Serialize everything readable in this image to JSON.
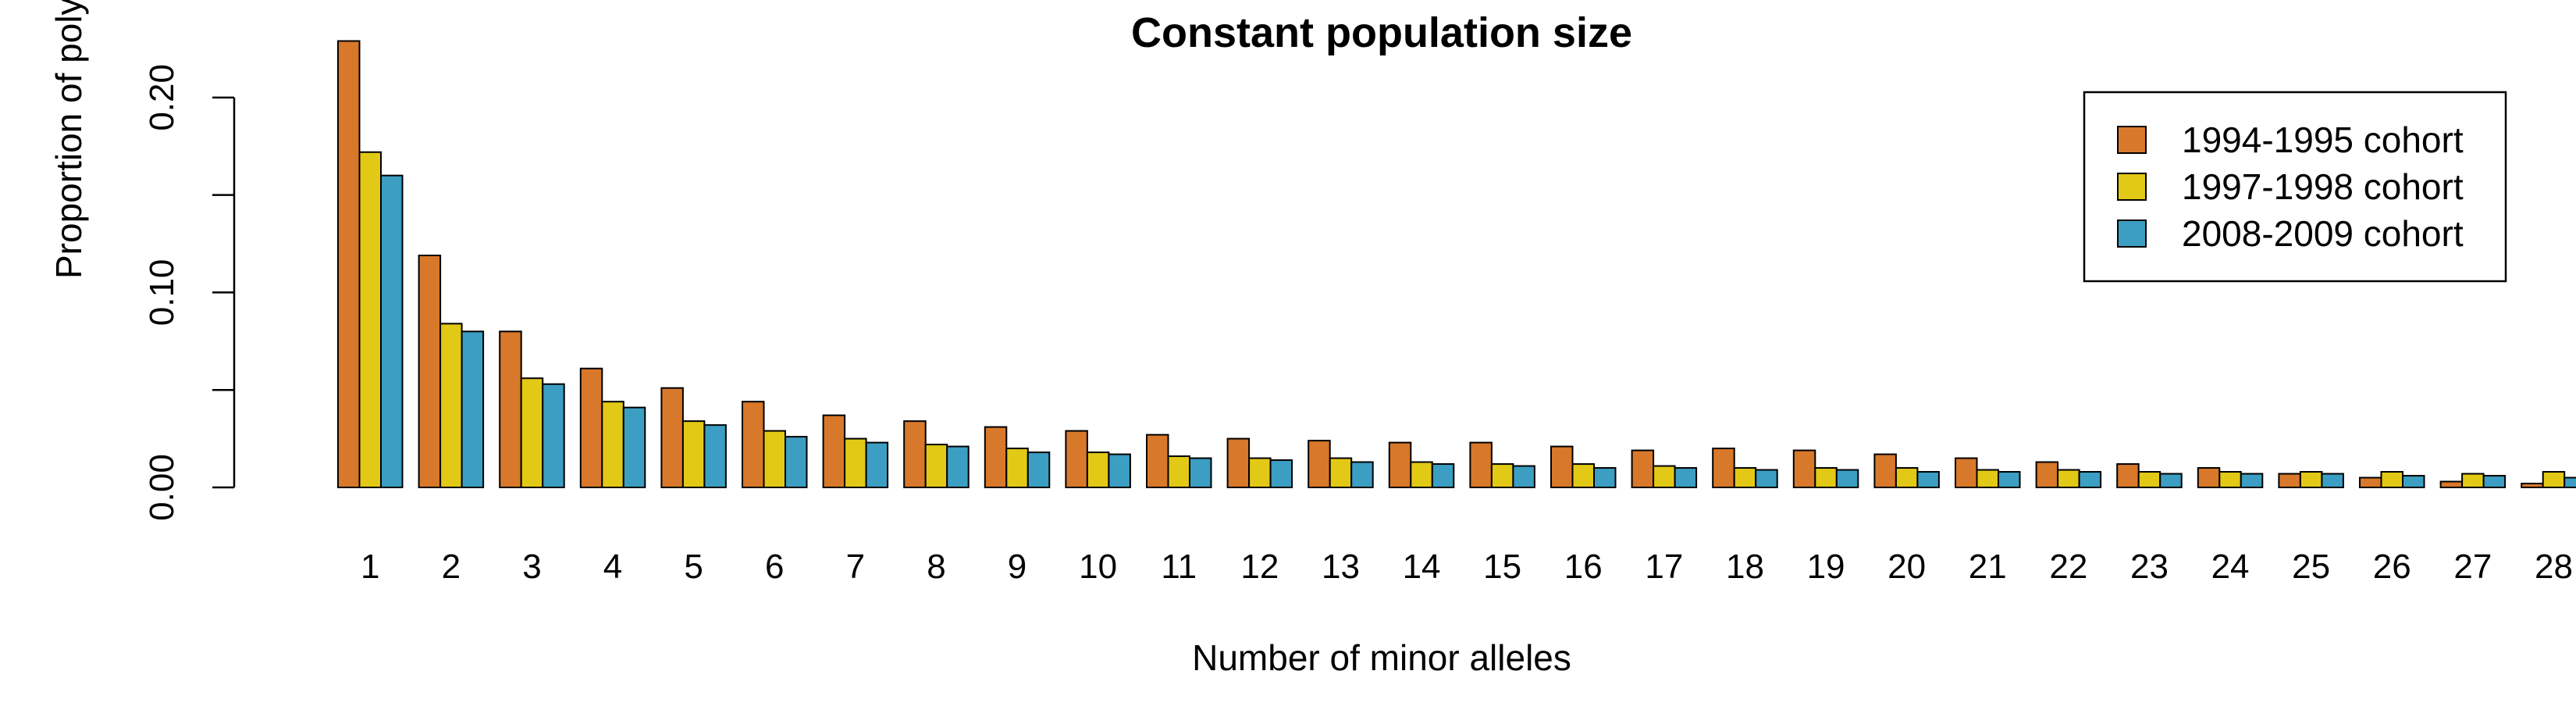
{
  "chart_data": {
    "type": "bar",
    "title": "Constant population size",
    "xlabel": "Number of minor alleles",
    "ylabel": "Proportion of polymorphic SNPs",
    "ylim": [
      0,
      0.23
    ],
    "y_ticks": [
      0.0,
      0.05,
      0.1,
      0.15,
      0.2
    ],
    "y_tick_labels": [
      "0.00",
      "",
      "0.10",
      "",
      "0.20"
    ],
    "categories": [
      "1",
      "2",
      "3",
      "4",
      "5",
      "6",
      "7",
      "8",
      "9",
      "10",
      "11",
      "12",
      "13",
      "14",
      "15",
      "16",
      "17",
      "18",
      "19",
      "20",
      "21",
      "22",
      "23",
      "24",
      "25",
      "26",
      "27",
      "28"
    ],
    "series": [
      {
        "name": "1994-1995 cohort",
        "color": "#D8782A",
        "values": [
          0.229,
          0.119,
          0.08,
          0.061,
          0.051,
          0.044,
          0.037,
          0.034,
          0.031,
          0.029,
          0.027,
          0.025,
          0.024,
          0.023,
          0.023,
          0.021,
          0.019,
          0.02,
          0.019,
          0.017,
          0.015,
          0.013,
          0.012,
          0.01,
          0.007,
          0.005,
          0.003,
          0.002
        ]
      },
      {
        "name": "1997-1998 cohort",
        "color": "#E2C916",
        "values": [
          0.172,
          0.084,
          0.056,
          0.044,
          0.034,
          0.029,
          0.025,
          0.022,
          0.02,
          0.018,
          0.016,
          0.015,
          0.015,
          0.013,
          0.012,
          0.012,
          0.011,
          0.01,
          0.01,
          0.01,
          0.009,
          0.009,
          0.008,
          0.008,
          0.008,
          0.008,
          0.007,
          0.008
        ]
      },
      {
        "name": "2008-2009 cohort",
        "color": "#3B9EC2",
        "values": [
          0.16,
          0.08,
          0.053,
          0.041,
          0.032,
          0.026,
          0.023,
          0.021,
          0.018,
          0.017,
          0.015,
          0.014,
          0.013,
          0.012,
          0.011,
          0.01,
          0.01,
          0.009,
          0.009,
          0.008,
          0.008,
          0.008,
          0.007,
          0.007,
          0.007,
          0.006,
          0.006,
          0.005
        ]
      }
    ],
    "legend_position": "top-right"
  }
}
